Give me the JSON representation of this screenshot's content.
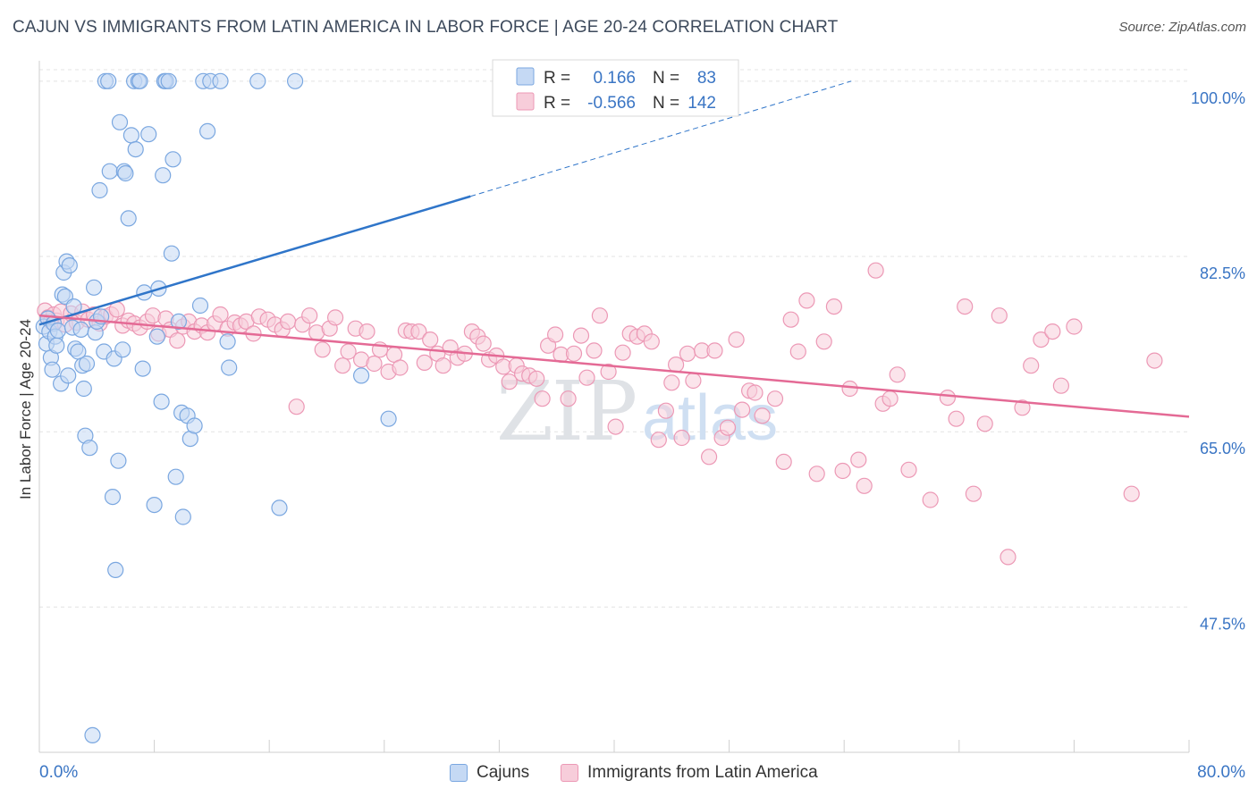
{
  "title": "CAJUN VS IMMIGRANTS FROM LATIN AMERICA IN LABOR FORCE | AGE 20-24 CORRELATION CHART",
  "source": "Source: ZipAtlas.com",
  "watermark": {
    "zip": "ZIP",
    "atlas": "atlas"
  },
  "colors": {
    "blue": "#7aa7e0",
    "blue_fill": "#c5d9f4",
    "blue_line": "#2f75c9",
    "pink": "#ec98b5",
    "pink_fill": "#f7cdda",
    "pink_line": "#e46a95",
    "axis_label": "#3a75c4",
    "grid": "#e3e3e3"
  },
  "legend": [
    {
      "r_label": "R =",
      "r_value": "0.166",
      "n_label": "N =",
      "n_value": "83"
    },
    {
      "r_label": "R =",
      "r_value": "-0.566",
      "n_label": "N =",
      "n_value": "142"
    }
  ],
  "chart_data": {
    "type": "scatter",
    "title": "CAJUN VS IMMIGRANTS FROM LATIN AMERICA IN LABOR FORCE | AGE 20-24 CORRELATION CHART",
    "xlabel": "",
    "ylabel": "In Labor Force | Age 20-24",
    "xlim": [
      0,
      80
    ],
    "ylim": [
      33.0,
      101.5
    ],
    "x_tick_labels": [
      "0.0%",
      "80.0%"
    ],
    "y_ticks": [
      47.5,
      65.0,
      82.5,
      100.0
    ],
    "y_tick_labels": [
      "47.5%",
      "65.0%",
      "82.5%",
      "100.0%"
    ],
    "grid": true,
    "legend_position": "top-center",
    "series": [
      {
        "name": "Cajuns",
        "color": "#7aa7e0",
        "r": 0.166,
        "n": 83,
        "trend": {
          "x0": 0,
          "y0": 75.7,
          "x1": 30,
          "y1": 88.5,
          "dashed_to_x": 56.5,
          "dashed_to_y": 100.0
        },
        "points": [
          [
            0.3,
            75.5
          ],
          [
            0.5,
            73.8
          ],
          [
            0.6,
            76.3
          ],
          [
            0.7,
            75.0
          ],
          [
            0.8,
            72.4
          ],
          [
            0.9,
            71.2
          ],
          [
            1.0,
            75.8
          ],
          [
            1.1,
            74.5
          ],
          [
            1.2,
            73.6
          ],
          [
            1.3,
            75.1
          ],
          [
            1.5,
            69.8
          ],
          [
            1.6,
            78.7
          ],
          [
            1.7,
            80.9
          ],
          [
            1.8,
            78.5
          ],
          [
            1.9,
            82.0
          ],
          [
            2.0,
            70.6
          ],
          [
            2.1,
            81.6
          ],
          [
            2.3,
            75.4
          ],
          [
            2.4,
            77.5
          ],
          [
            2.5,
            73.3
          ],
          [
            2.7,
            73.0
          ],
          [
            2.9,
            75.2
          ],
          [
            3.0,
            71.6
          ],
          [
            3.1,
            69.3
          ],
          [
            3.2,
            64.6
          ],
          [
            3.3,
            71.8
          ],
          [
            3.5,
            63.4
          ],
          [
            3.7,
            34.7
          ],
          [
            3.8,
            79.4
          ],
          [
            3.9,
            74.9
          ],
          [
            4.0,
            76.0
          ],
          [
            4.2,
            89.1
          ],
          [
            4.3,
            76.5
          ],
          [
            4.5,
            73.0
          ],
          [
            4.6,
            100.0
          ],
          [
            4.8,
            100.0
          ],
          [
            4.9,
            91.0
          ],
          [
            5.1,
            58.5
          ],
          [
            5.2,
            72.3
          ],
          [
            5.3,
            51.2
          ],
          [
            5.5,
            62.1
          ],
          [
            5.6,
            95.9
          ],
          [
            5.8,
            73.2
          ],
          [
            5.9,
            91.0
          ],
          [
            6.0,
            90.8
          ],
          [
            6.2,
            86.3
          ],
          [
            6.4,
            94.6
          ],
          [
            6.6,
            100.0
          ],
          [
            6.7,
            93.2
          ],
          [
            6.9,
            100.0
          ],
          [
            7.0,
            100.0
          ],
          [
            7.2,
            71.3
          ],
          [
            7.3,
            78.9
          ],
          [
            7.6,
            94.7
          ],
          [
            8.0,
            57.7
          ],
          [
            8.2,
            74.5
          ],
          [
            8.3,
            79.3
          ],
          [
            8.5,
            68.0
          ],
          [
            8.6,
            90.6
          ],
          [
            8.7,
            100.0
          ],
          [
            8.8,
            100.0
          ],
          [
            9.0,
            100.0
          ],
          [
            9.2,
            82.8
          ],
          [
            9.3,
            92.2
          ],
          [
            9.5,
            60.5
          ],
          [
            9.7,
            76.0
          ],
          [
            9.9,
            66.9
          ],
          [
            10.0,
            56.5
          ],
          [
            10.3,
            66.6
          ],
          [
            10.5,
            64.3
          ],
          [
            10.8,
            65.6
          ],
          [
            11.2,
            77.6
          ],
          [
            11.4,
            100.0
          ],
          [
            11.7,
            95.0
          ],
          [
            11.9,
            100.0
          ],
          [
            12.6,
            100.0
          ],
          [
            13.1,
            74.0
          ],
          [
            13.2,
            71.4
          ],
          [
            15.2,
            100.0
          ],
          [
            16.7,
            57.4
          ],
          [
            17.8,
            100.0
          ],
          [
            22.4,
            70.6
          ],
          [
            24.3,
            66.3
          ]
        ]
      },
      {
        "name": "Immigrants from Latin America",
        "color": "#ec98b5",
        "r": -0.566,
        "n": 142,
        "trend": {
          "x0": 0,
          "y0": 76.6,
          "x1": 80,
          "y1": 66.5
        },
        "points": [
          [
            0.4,
            77.1
          ],
          [
            0.6,
            76.4
          ],
          [
            0.8,
            76.0
          ],
          [
            1.0,
            76.7
          ],
          [
            1.2,
            76.1
          ],
          [
            1.5,
            77.0
          ],
          [
            1.8,
            75.7
          ],
          [
            2.2,
            76.8
          ],
          [
            2.6,
            75.9
          ],
          [
            3.0,
            77.0
          ],
          [
            3.4,
            76.2
          ],
          [
            3.8,
            76.7
          ],
          [
            4.2,
            75.8
          ],
          [
            4.6,
            76.5
          ],
          [
            5.0,
            76.7
          ],
          [
            5.4,
            77.2
          ],
          [
            5.8,
            75.6
          ],
          [
            6.2,
            76.1
          ],
          [
            6.6,
            75.8
          ],
          [
            7.0,
            75.4
          ],
          [
            7.5,
            76.0
          ],
          [
            7.9,
            76.6
          ],
          [
            8.3,
            74.8
          ],
          [
            8.8,
            76.3
          ],
          [
            9.1,
            75.2
          ],
          [
            9.6,
            74.1
          ],
          [
            10.0,
            75.5
          ],
          [
            10.4,
            76.0
          ],
          [
            10.8,
            75.0
          ],
          [
            11.3,
            75.6
          ],
          [
            11.7,
            74.9
          ],
          [
            12.2,
            75.8
          ],
          [
            12.6,
            76.7
          ],
          [
            13.1,
            75.3
          ],
          [
            13.6,
            75.9
          ],
          [
            14.0,
            75.6
          ],
          [
            14.4,
            76.0
          ],
          [
            14.9,
            74.8
          ],
          [
            15.3,
            76.5
          ],
          [
            15.9,
            76.2
          ],
          [
            16.4,
            75.7
          ],
          [
            16.9,
            75.2
          ],
          [
            17.3,
            76.0
          ],
          [
            17.9,
            67.5
          ],
          [
            18.3,
            75.7
          ],
          [
            18.8,
            76.6
          ],
          [
            19.3,
            74.9
          ],
          [
            19.7,
            73.2
          ],
          [
            20.2,
            75.3
          ],
          [
            20.6,
            76.4
          ],
          [
            21.1,
            71.6
          ],
          [
            21.5,
            73.0
          ],
          [
            22.0,
            75.3
          ],
          [
            22.4,
            72.2
          ],
          [
            22.8,
            75.0
          ],
          [
            23.3,
            71.8
          ],
          [
            23.7,
            73.2
          ],
          [
            24.3,
            71.0
          ],
          [
            24.7,
            72.7
          ],
          [
            25.1,
            71.4
          ],
          [
            25.5,
            75.1
          ],
          [
            25.9,
            75.0
          ],
          [
            26.4,
            75.0
          ],
          [
            26.8,
            71.9
          ],
          [
            27.2,
            74.2
          ],
          [
            27.7,
            72.8
          ],
          [
            28.1,
            71.6
          ],
          [
            28.6,
            73.4
          ],
          [
            29.1,
            72.4
          ],
          [
            29.6,
            72.8
          ],
          [
            30.1,
            75.0
          ],
          [
            30.5,
            74.5
          ],
          [
            30.9,
            73.8
          ],
          [
            31.3,
            72.2
          ],
          [
            31.8,
            72.6
          ],
          [
            32.3,
            71.5
          ],
          [
            32.7,
            70.0
          ],
          [
            33.2,
            71.6
          ],
          [
            33.6,
            70.8
          ],
          [
            34.1,
            70.6
          ],
          [
            34.6,
            70.3
          ],
          [
            35.0,
            68.3
          ],
          [
            35.4,
            73.6
          ],
          [
            35.9,
            74.7
          ],
          [
            36.3,
            72.7
          ],
          [
            36.8,
            68.3
          ],
          [
            37.2,
            72.8
          ],
          [
            37.7,
            74.6
          ],
          [
            38.1,
            70.4
          ],
          [
            38.6,
            73.1
          ],
          [
            39.0,
            76.6
          ],
          [
            39.6,
            71.0
          ],
          [
            40.1,
            65.5
          ],
          [
            40.6,
            72.9
          ],
          [
            41.1,
            74.8
          ],
          [
            41.6,
            74.5
          ],
          [
            42.1,
            74.8
          ],
          [
            42.6,
            74.0
          ],
          [
            43.1,
            64.2
          ],
          [
            43.6,
            67.1
          ],
          [
            44.0,
            69.9
          ],
          [
            44.3,
            71.7
          ],
          [
            44.7,
            64.4
          ],
          [
            45.1,
            72.8
          ],
          [
            45.5,
            70.1
          ],
          [
            46.1,
            73.1
          ],
          [
            46.6,
            62.5
          ],
          [
            47.0,
            73.1
          ],
          [
            47.5,
            64.4
          ],
          [
            47.9,
            65.4
          ],
          [
            48.5,
            74.2
          ],
          [
            48.9,
            67.2
          ],
          [
            49.4,
            69.1
          ],
          [
            49.8,
            68.9
          ],
          [
            50.3,
            66.6
          ],
          [
            51.2,
            68.3
          ],
          [
            51.8,
            62.0
          ],
          [
            52.3,
            76.2
          ],
          [
            52.8,
            73.0
          ],
          [
            53.4,
            78.1
          ],
          [
            54.1,
            60.8
          ],
          [
            54.6,
            74.0
          ],
          [
            55.3,
            77.5
          ],
          [
            55.9,
            61.1
          ],
          [
            56.4,
            69.3
          ],
          [
            57.0,
            62.2
          ],
          [
            57.4,
            59.6
          ],
          [
            58.2,
            81.1
          ],
          [
            58.7,
            67.8
          ],
          [
            59.2,
            68.3
          ],
          [
            59.7,
            70.7
          ],
          [
            60.5,
            61.2
          ],
          [
            62.0,
            58.2
          ],
          [
            63.2,
            68.4
          ],
          [
            63.8,
            66.3
          ],
          [
            64.4,
            77.5
          ],
          [
            65.0,
            58.8
          ],
          [
            65.8,
            65.8
          ],
          [
            66.8,
            76.6
          ],
          [
            67.4,
            52.5
          ],
          [
            68.4,
            67.4
          ],
          [
            69.0,
            71.6
          ],
          [
            69.7,
            74.2
          ],
          [
            70.5,
            75.0
          ],
          [
            71.1,
            69.6
          ],
          [
            72.0,
            75.5
          ],
          [
            76.0,
            58.8
          ],
          [
            77.6,
            72.1
          ]
        ]
      }
    ]
  },
  "axis": {
    "y_label": "In Labor Force | Age 20-24",
    "x_min_label": "0.0%",
    "x_max_label": "80.0%"
  }
}
